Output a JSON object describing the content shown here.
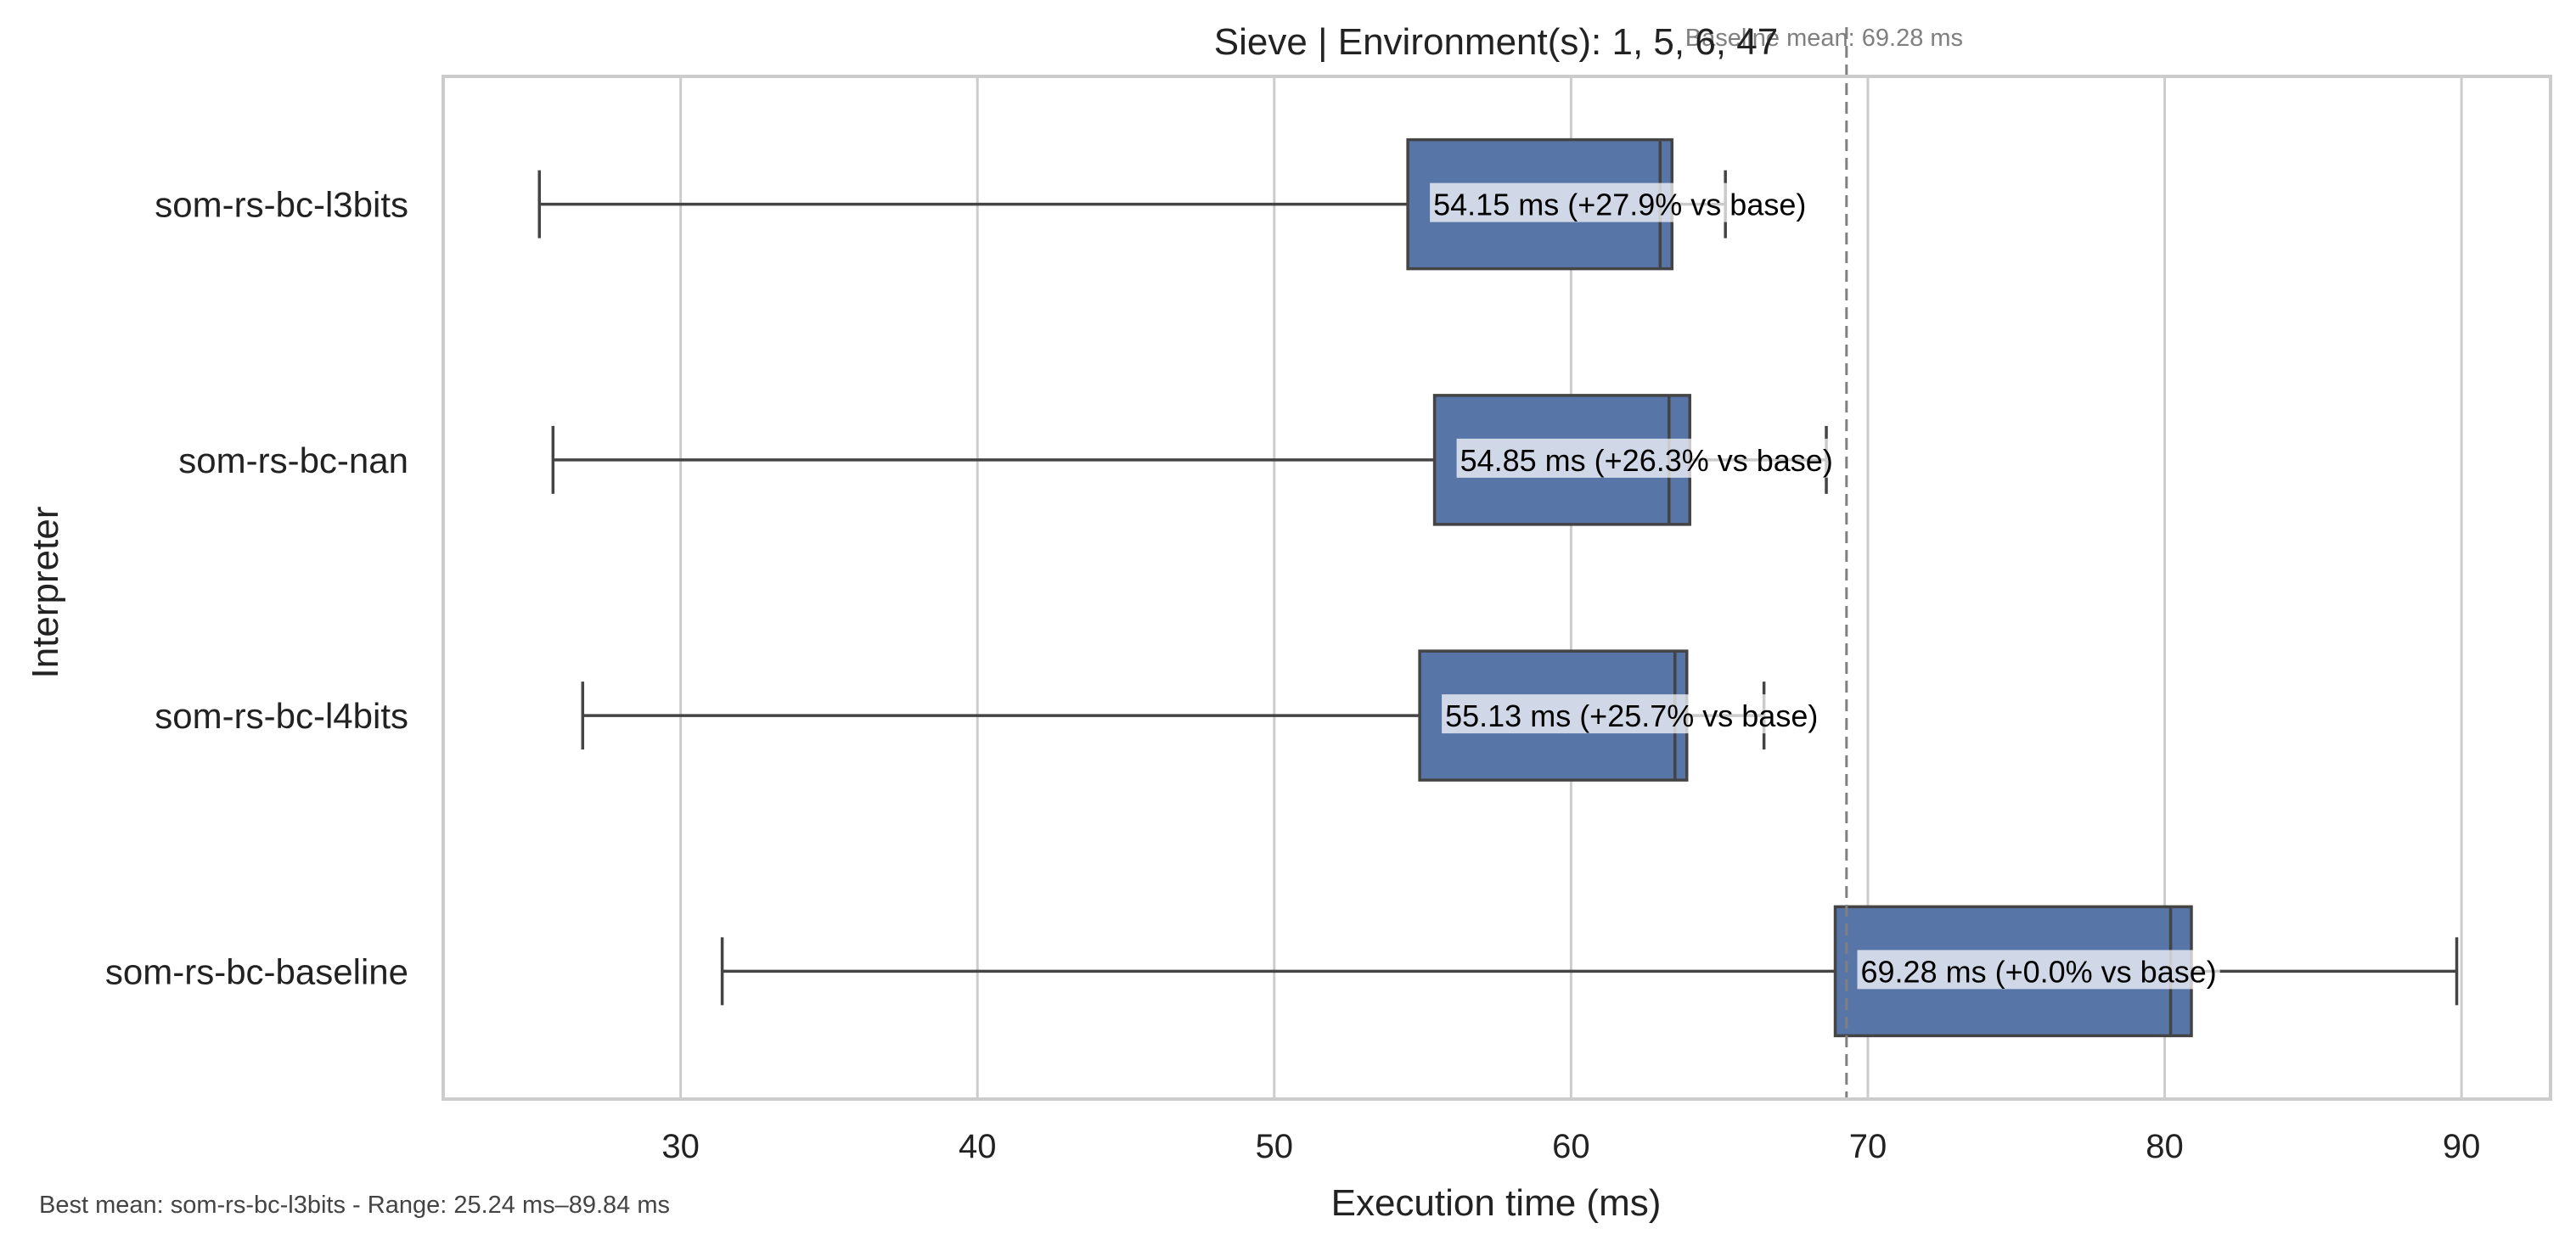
{
  "chart_data": {
    "type": "boxplot",
    "orientation": "horizontal",
    "title": "Sieve | Environment(s): 1, 5, 6, 47",
    "xlabel": "Execution time (ms)",
    "ylabel": "Interpreter",
    "xlim": [
      22,
      93
    ],
    "xticks": [
      30,
      40,
      50,
      60,
      70,
      80,
      90
    ],
    "grid": "x",
    "box_color": "#5875a8",
    "edge_color": "#444444",
    "series": [
      {
        "name": "som-rs-bc-l3bits",
        "whisker_low": 25.24,
        "q1": 54.5,
        "median": 63.0,
        "q3": 63.4,
        "whisker_high": 65.2,
        "label": "54.15 ms  (+27.9% vs base)"
      },
      {
        "name": "som-rs-bc-nan",
        "whisker_low": 25.7,
        "q1": 55.4,
        "median": 63.3,
        "q3": 64.0,
        "whisker_high": 68.6,
        "label": "54.85 ms  (+26.3% vs base)"
      },
      {
        "name": "som-rs-bc-l4bits",
        "whisker_low": 26.7,
        "q1": 54.9,
        "median": 63.5,
        "q3": 63.9,
        "whisker_high": 66.5,
        "label": "55.13 ms  (+25.7% vs base)"
      },
      {
        "name": "som-rs-bc-baseline",
        "whisker_low": 31.4,
        "q1": 68.9,
        "median": 80.2,
        "q3": 80.9,
        "whisker_high": 89.84,
        "label": "69.28 ms  (+0.0% vs base)"
      }
    ],
    "reference_line": {
      "value": 69.28,
      "label": "Baseline mean: 69.28 ms",
      "style": "dashed"
    }
  },
  "footnote": "Best mean: som-rs-bc-l3bits - Range: 25.24 ms–89.84 ms"
}
